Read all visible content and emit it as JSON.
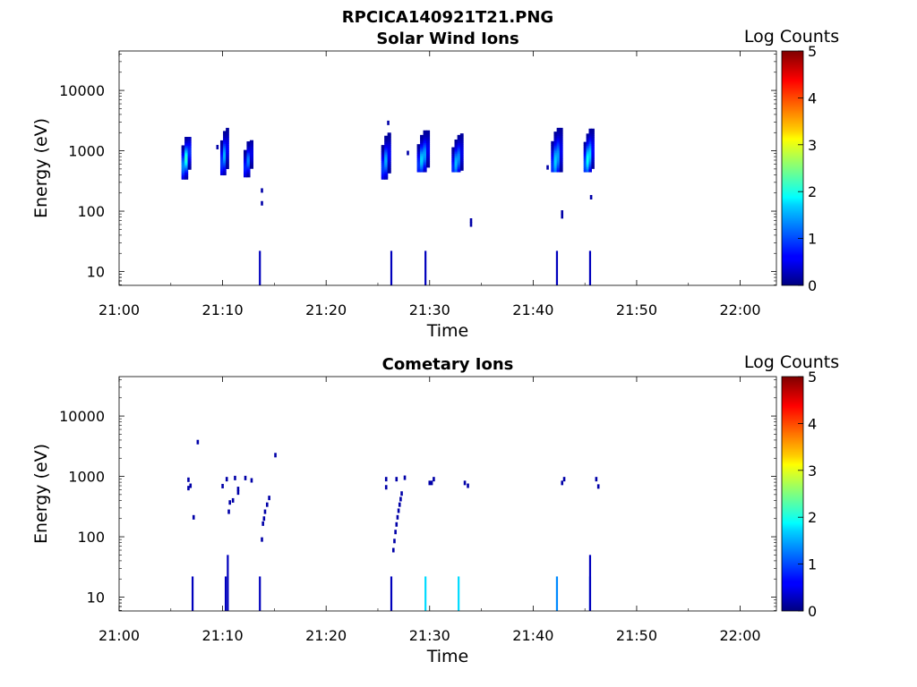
{
  "figure_title": "RPCICA140921T21.PNG",
  "chart_data": [
    {
      "type": "heatmap",
      "title": "Solar Wind Ions",
      "xlabel": "Time",
      "ylabel": "Energy (eV)",
      "xticks": [
        "21:00",
        "21:10",
        "21:20",
        "21:30",
        "21:40",
        "21:50",
        "22:00"
      ],
      "yticks": [
        "10",
        "100",
        "1000",
        "10000"
      ],
      "x_range_min": [
        0,
        63.5
      ],
      "y_range_ev": [
        5.9,
        45000
      ],
      "y_scale": "log",
      "colorbar": {
        "label": "Log Counts",
        "ticks": [
          "0",
          "1",
          "2",
          "3",
          "4",
          "5"
        ],
        "range": [
          0,
          5
        ]
      },
      "blobs": [
        {
          "t": 6.5,
          "w": 0.9,
          "emin": 340,
          "emax": 1700,
          "peak_e": 750,
          "peak": 2.1
        },
        {
          "t": 10.2,
          "w": 0.8,
          "emin": 400,
          "emax": 2400,
          "peak_e": 850,
          "peak": 1.5
        },
        {
          "t": 12.5,
          "w": 0.9,
          "emin": 370,
          "emax": 1500,
          "peak_e": 700,
          "peak": 1.3
        },
        {
          "t": 25.8,
          "w": 0.9,
          "emin": 340,
          "emax": 2000,
          "peak_e": 700,
          "peak": 1.5
        },
        {
          "t": 29.4,
          "w": 1.2,
          "emin": 450,
          "emax": 2600,
          "peak_e": 800,
          "peak": 1.7
        },
        {
          "t": 32.7,
          "w": 1.1,
          "emin": 450,
          "emax": 2600,
          "peak_e": 700,
          "peak": 1.6
        },
        {
          "t": 42.3,
          "w": 1.1,
          "emin": 450,
          "emax": 4000,
          "peak_e": 750,
          "peak": 1.7
        },
        {
          "t": 45.4,
          "w": 1.0,
          "emin": 450,
          "emax": 3000,
          "peak_e": 800,
          "peak": 2.0
        }
      ],
      "dots": [
        {
          "t": 9.5,
          "e": 1150,
          "v": 0.2
        },
        {
          "t": 13.8,
          "e": 220,
          "v": 0.2
        },
        {
          "t": 13.8,
          "e": 135,
          "v": 0.2
        },
        {
          "t": 27.9,
          "e": 920,
          "v": 0.2
        },
        {
          "t": 34.0,
          "e": 70,
          "v": 0.2
        },
        {
          "t": 34.0,
          "e": 60,
          "v": 0.2
        },
        {
          "t": 41.4,
          "e": 530,
          "v": 0.2
        },
        {
          "t": 42.8,
          "e": 95,
          "v": 0.2
        },
        {
          "t": 42.8,
          "e": 82,
          "v": 0.2
        },
        {
          "t": 45.6,
          "e": 170,
          "v": 0.2
        },
        {
          "t": 26.0,
          "e": 2900,
          "v": 0.2
        }
      ],
      "spikes": [
        {
          "t": 13.6,
          "e_top": 22,
          "v": 0.3
        },
        {
          "t": 26.3,
          "e_top": 22,
          "v": 0.3
        },
        {
          "t": 29.6,
          "e_top": 22,
          "v": 0.3
        },
        {
          "t": 42.3,
          "e_top": 22,
          "v": 0.3
        },
        {
          "t": 45.5,
          "e_top": 22,
          "v": 0.3
        }
      ]
    },
    {
      "type": "heatmap",
      "title": "Cometary Ions",
      "xlabel": "Time",
      "ylabel": "Energy (eV)",
      "xticks": [
        "21:00",
        "21:10",
        "21:20",
        "21:30",
        "21:40",
        "21:50",
        "22:00"
      ],
      "yticks": [
        "10",
        "100",
        "1000",
        "10000"
      ],
      "x_range_min": [
        0,
        63.5
      ],
      "y_range_ev": [
        5.9,
        45000
      ],
      "y_scale": "log",
      "colorbar": {
        "label": "Log Counts",
        "ticks": [
          "0",
          "1",
          "2",
          "3",
          "4",
          "5"
        ],
        "range": [
          0,
          5
        ]
      },
      "blobs": [],
      "dots": [
        {
          "t": 6.7,
          "e": 880,
          "v": 0.2
        },
        {
          "t": 6.7,
          "e": 640,
          "v": 0.2
        },
        {
          "t": 6.9,
          "e": 700,
          "v": 0.2
        },
        {
          "t": 7.2,
          "e": 210,
          "v": 0.2
        },
        {
          "t": 7.6,
          "e": 3700,
          "v": 0.2
        },
        {
          "t": 10.0,
          "e": 690,
          "v": 0.2
        },
        {
          "t": 10.4,
          "e": 900,
          "v": 0.2
        },
        {
          "t": 10.6,
          "e": 260,
          "v": 0.2
        },
        {
          "t": 10.7,
          "e": 370,
          "v": 0.2
        },
        {
          "t": 11.0,
          "e": 400,
          "v": 0.2
        },
        {
          "t": 11.2,
          "e": 940,
          "v": 0.2
        },
        {
          "t": 11.5,
          "e": 620,
          "v": 0.2
        },
        {
          "t": 11.5,
          "e": 540,
          "v": 0.2
        },
        {
          "t": 12.2,
          "e": 940,
          "v": 0.2
        },
        {
          "t": 12.8,
          "e": 860,
          "v": 0.2
        },
        {
          "t": 13.8,
          "e": 90,
          "v": 0.2
        },
        {
          "t": 13.9,
          "e": 165,
          "v": 0.2
        },
        {
          "t": 14.0,
          "e": 200,
          "v": 0.2
        },
        {
          "t": 14.1,
          "e": 260,
          "v": 0.2
        },
        {
          "t": 14.3,
          "e": 340,
          "v": 0.2
        },
        {
          "t": 14.5,
          "e": 440,
          "v": 0.2
        },
        {
          "t": 15.1,
          "e": 2250,
          "v": 0.2
        },
        {
          "t": 25.8,
          "e": 900,
          "v": 0.2
        },
        {
          "t": 25.8,
          "e": 660,
          "v": 0.2
        },
        {
          "t": 26.5,
          "e": 60,
          "v": 0.2
        },
        {
          "t": 26.6,
          "e": 85,
          "v": 0.2
        },
        {
          "t": 26.7,
          "e": 120,
          "v": 0.2
        },
        {
          "t": 26.8,
          "e": 160,
          "v": 0.2
        },
        {
          "t": 26.9,
          "e": 210,
          "v": 0.2
        },
        {
          "t": 27.0,
          "e": 270,
          "v": 0.2
        },
        {
          "t": 27.1,
          "e": 340,
          "v": 0.2
        },
        {
          "t": 27.2,
          "e": 420,
          "v": 0.2
        },
        {
          "t": 27.3,
          "e": 520,
          "v": 0.2
        },
        {
          "t": 26.8,
          "e": 900,
          "v": 0.2
        },
        {
          "t": 27.6,
          "e": 950,
          "v": 0.2
        },
        {
          "t": 30.0,
          "e": 780,
          "v": 0.2
        },
        {
          "t": 30.2,
          "e": 780,
          "v": 0.2
        },
        {
          "t": 30.4,
          "e": 900,
          "v": 0.2
        },
        {
          "t": 33.4,
          "e": 780,
          "v": 0.2
        },
        {
          "t": 33.7,
          "e": 700,
          "v": 0.2
        },
        {
          "t": 42.8,
          "e": 780,
          "v": 0.2
        },
        {
          "t": 43.0,
          "e": 900,
          "v": 0.2
        },
        {
          "t": 46.1,
          "e": 900,
          "v": 0.2
        },
        {
          "t": 46.3,
          "e": 680,
          "v": 0.2
        }
      ],
      "spikes": [
        {
          "t": 7.1,
          "e_top": 22,
          "v": 0.3
        },
        {
          "t": 10.3,
          "e_top": 22,
          "v": 0.3
        },
        {
          "t": 10.5,
          "e_top": 50,
          "v": 0.3
        },
        {
          "t": 13.6,
          "e_top": 22,
          "v": 0.3
        },
        {
          "t": 26.3,
          "e_top": 22,
          "v": 0.3
        },
        {
          "t": 29.6,
          "e_top": 22,
          "v": 1.7
        },
        {
          "t": 32.8,
          "e_top": 22,
          "v": 1.7
        },
        {
          "t": 42.3,
          "e_top": 22,
          "v": 1.3
        },
        {
          "t": 45.5,
          "e_top": 22,
          "v": 1.3
        },
        {
          "t": 45.5,
          "e_top": 50,
          "v": 0.3
        }
      ]
    }
  ]
}
